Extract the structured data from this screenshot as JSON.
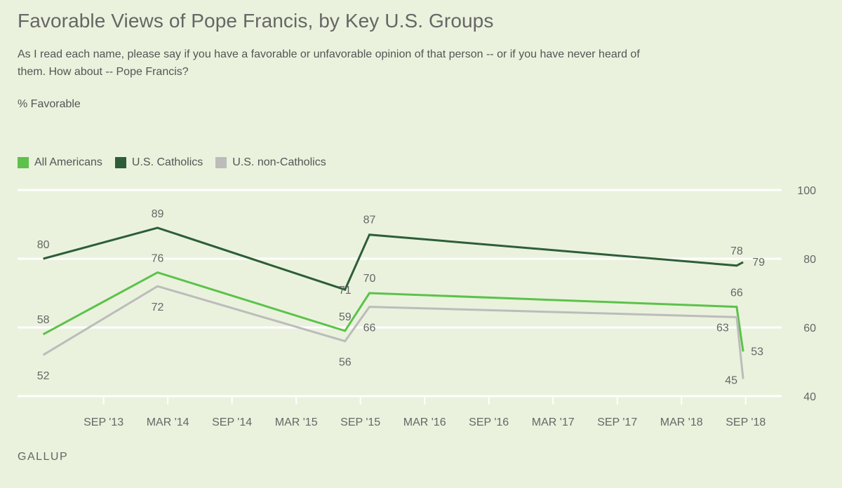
{
  "header": {
    "title": "Favorable Views of Pope Francis, by Key U.S. Groups",
    "subtitle": "As I read each name, please say if you have a favorable or unfavorable opinion of that person -- or if you have never heard of them. How about -- Pope Francis?",
    "ylabel": "% Favorable"
  },
  "footer": {
    "source": "GALLUP"
  },
  "chart_data": {
    "type": "line",
    "title": "Favorable Views of Pope Francis, by Key U.S. Groups",
    "ylabel": "% Favorable",
    "xlabel": "",
    "ylim": [
      40,
      100
    ],
    "yticks": [
      40,
      60,
      80,
      100
    ],
    "xlim": [
      2013.0,
      2018.95
    ],
    "xticks": [
      {
        "label": "SEP '13",
        "value": 2013.67
      },
      {
        "label": "MAR '14",
        "value": 2014.17
      },
      {
        "label": "SEP '14",
        "value": 2014.67
      },
      {
        "label": "MAR '15",
        "value": 2015.17
      },
      {
        "label": "SEP '15",
        "value": 2015.67
      },
      {
        "label": "MAR '16",
        "value": 2016.17
      },
      {
        "label": "SEP '16",
        "value": 2016.67
      },
      {
        "label": "MAR '17",
        "value": 2017.17
      },
      {
        "label": "SEP '17",
        "value": 2017.67
      },
      {
        "label": "MAR '18",
        "value": 2018.17
      },
      {
        "label": "SEP '18",
        "value": 2018.67
      }
    ],
    "grid": true,
    "legend_position": "top-left",
    "series": [
      {
        "name": "All Americans",
        "color": "#5cc24a",
        "x": [
          2013.2,
          2014.09,
          2015.55,
          2015.74,
          2018.6,
          2018.65
        ],
        "values": [
          58,
          76,
          59,
          70,
          66,
          53
        ],
        "labels": [
          "58",
          "76",
          "59",
          "70",
          "66",
          "53"
        ]
      },
      {
        "name": "U.S. Catholics",
        "color": "#2d5e38",
        "x": [
          2013.2,
          2014.09,
          2015.55,
          2015.74,
          2018.6,
          2018.65
        ],
        "values": [
          80,
          89,
          71,
          87,
          78,
          79
        ],
        "labels": [
          "80",
          "89",
          "71",
          "87",
          "78",
          "79"
        ]
      },
      {
        "name": "U.S. non-Catholics",
        "color": "#bcbcbc",
        "x": [
          2013.2,
          2014.09,
          2015.55,
          2015.74,
          2018.6,
          2018.65
        ],
        "values": [
          52,
          72,
          56,
          66,
          63,
          45
        ],
        "labels": [
          "52",
          "72",
          "56",
          "66",
          "63",
          "45"
        ]
      }
    ]
  }
}
